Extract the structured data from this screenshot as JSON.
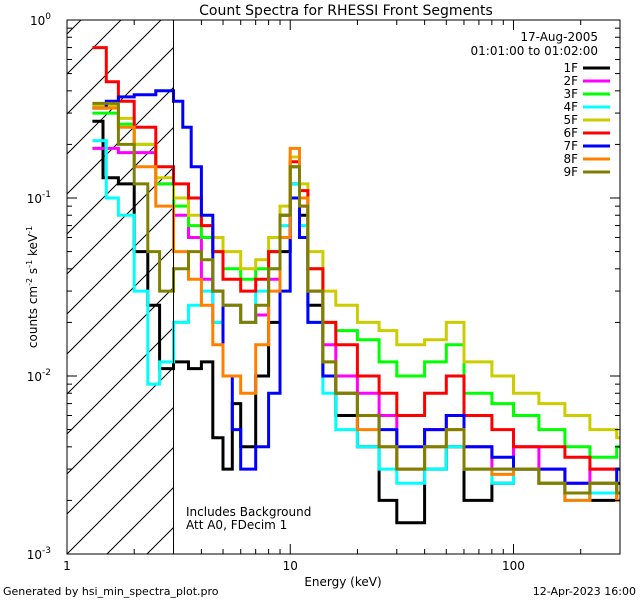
{
  "chart_data": {
    "type": "line",
    "title": "Count Spectra for RHESSI Front Segments",
    "xlabel": "Energy (keV)",
    "ylabel": "counts cm^-2 s^-1 keV^-1",
    "ylabel_parts": {
      "a": "counts cm",
      "b": "-2",
      "c": " s",
      "d": "-1",
      "e": " keV",
      "f": "-1"
    },
    "xscale": "log",
    "yscale": "log",
    "xlim": [
      1,
      300
    ],
    "ylim": [
      0.001,
      1
    ],
    "x_ticks": [
      {
        "value": 1,
        "label": "1"
      },
      {
        "value": 10,
        "label": "10"
      },
      {
        "value": 100,
        "label": "100"
      }
    ],
    "y_ticks": [
      {
        "exp": 0,
        "label_base": "10",
        "label_exp": "0"
      },
      {
        "exp": -1,
        "label_base": "10",
        "label_exp": "-1"
      },
      {
        "exp": -2,
        "label_base": "10",
        "label_exp": "-2"
      },
      {
        "exp": -3,
        "label_base": "10",
        "label_exp": "-3"
      }
    ],
    "date": "17-Aug-2005",
    "time_range": "01:01:00 to 01:02:00",
    "hatched_region_xmax": 3,
    "annotation_lines": [
      "Includes Background",
      "Att A0, FDecim 1"
    ],
    "legend_position": "top-right",
    "series": [
      {
        "name": "1F",
        "color": "#000000",
        "points": [
          [
            1.3,
            0.27
          ],
          [
            1.45,
            0.13
          ],
          [
            1.7,
            0.12
          ],
          [
            2.0,
            0.05
          ],
          [
            2.3,
            0.025
          ],
          [
            2.6,
            0.011
          ],
          [
            3.0,
            0.012
          ],
          [
            3.5,
            0.011
          ],
          [
            4.0,
            0.012
          ],
          [
            4.5,
            0.0045
          ],
          [
            5.0,
            0.003
          ],
          [
            5.5,
            0.007
          ],
          [
            6,
            0.004
          ],
          [
            7,
            0.01
          ],
          [
            8,
            0.02
          ],
          [
            9,
            0.05
          ],
          [
            10,
            0.12
          ],
          [
            11,
            0.08
          ],
          [
            12,
            0.025
          ],
          [
            14,
            0.01
          ],
          [
            16,
            0.006
          ],
          [
            20,
            0.004
          ],
          [
            25,
            0.002
          ],
          [
            30,
            0.0015
          ],
          [
            40,
            0.003
          ],
          [
            50,
            0.004
          ],
          [
            60,
            0.002
          ],
          [
            80,
            0.0025
          ],
          [
            100,
            0.003
          ],
          [
            130,
            0.0025
          ],
          [
            170,
            0.0022
          ],
          [
            220,
            0.002
          ],
          [
            290,
            0.0025
          ]
        ]
      },
      {
        "name": "2F",
        "color": "#ff00ff",
        "points": [
          [
            1.3,
            0.19
          ],
          [
            1.7,
            0.18
          ],
          [
            2.0,
            0.18
          ],
          [
            2.5,
            0.12
          ],
          [
            3.0,
            0.08
          ],
          [
            3.5,
            0.06
          ],
          [
            4.0,
            0.035
          ],
          [
            4.5,
            0.02
          ],
          [
            5.0,
            0.025
          ],
          [
            6,
            0.02
          ],
          [
            7,
            0.022
          ],
          [
            8,
            0.035
          ],
          [
            9,
            0.06
          ],
          [
            10,
            0.15
          ],
          [
            11,
            0.09
          ],
          [
            12,
            0.03
          ],
          [
            14,
            0.015
          ],
          [
            16,
            0.01
          ],
          [
            20,
            0.008
          ],
          [
            25,
            0.006
          ],
          [
            30,
            0.003
          ],
          [
            40,
            0.005
          ],
          [
            50,
            0.006
          ],
          [
            60,
            0.004
          ],
          [
            80,
            0.003
          ],
          [
            100,
            0.004
          ],
          [
            130,
            0.003
          ],
          [
            170,
            0.0025
          ],
          [
            220,
            0.003
          ],
          [
            290,
            0.003
          ]
        ]
      },
      {
        "name": "3F",
        "color": "#00ff00",
        "points": [
          [
            1.3,
            0.3
          ],
          [
            1.7,
            0.26
          ],
          [
            2.0,
            0.2
          ],
          [
            2.5,
            0.12
          ],
          [
            3.0,
            0.09
          ],
          [
            3.5,
            0.07
          ],
          [
            4.0,
            0.06
          ],
          [
            4.5,
            0.05
          ],
          [
            5.0,
            0.04
          ],
          [
            6,
            0.035
          ],
          [
            7,
            0.04
          ],
          [
            8,
            0.05
          ],
          [
            9,
            0.08
          ],
          [
            10,
            0.15
          ],
          [
            11,
            0.1
          ],
          [
            12,
            0.04
          ],
          [
            14,
            0.02
          ],
          [
            16,
            0.018
          ],
          [
            20,
            0.016
          ],
          [
            25,
            0.012
          ],
          [
            30,
            0.01
          ],
          [
            40,
            0.012
          ],
          [
            50,
            0.015
          ],
          [
            60,
            0.008
          ],
          [
            80,
            0.007
          ],
          [
            100,
            0.006
          ],
          [
            130,
            0.005
          ],
          [
            170,
            0.004
          ],
          [
            220,
            0.0035
          ],
          [
            290,
            0.004
          ]
        ]
      },
      {
        "name": "4F",
        "color": "#00ffff",
        "points": [
          [
            1.3,
            0.21
          ],
          [
            1.5,
            0.1
          ],
          [
            1.7,
            0.08
          ],
          [
            2.0,
            0.03
          ],
          [
            2.3,
            0.009
          ],
          [
            2.6,
            0.012
          ],
          [
            3.0,
            0.02
          ],
          [
            3.5,
            0.025
          ],
          [
            4.0,
            0.03
          ],
          [
            4.5,
            0.02
          ],
          [
            5.0,
            0.025
          ],
          [
            6,
            0.02
          ],
          [
            7,
            0.03
          ],
          [
            8,
            0.04
          ],
          [
            9,
            0.07
          ],
          [
            10,
            0.12
          ],
          [
            11,
            0.07
          ],
          [
            12,
            0.02
          ],
          [
            14,
            0.008
          ],
          [
            16,
            0.005
          ],
          [
            20,
            0.004
          ],
          [
            25,
            0.003
          ],
          [
            30,
            0.0025
          ],
          [
            40,
            0.003
          ],
          [
            50,
            0.004
          ],
          [
            60,
            0.003
          ],
          [
            80,
            0.0025
          ],
          [
            100,
            0.003
          ],
          [
            130,
            0.0025
          ],
          [
            170,
            0.002
          ],
          [
            220,
            0.0022
          ],
          [
            290,
            0.002
          ]
        ]
      },
      {
        "name": "5F",
        "color": "#cccc00",
        "points": [
          [
            1.3,
            0.33
          ],
          [
            1.7,
            0.28
          ],
          [
            2.0,
            0.2
          ],
          [
            2.5,
            0.13
          ],
          [
            3.0,
            0.1
          ],
          [
            3.5,
            0.08
          ],
          [
            4.0,
            0.07
          ],
          [
            4.5,
            0.06
          ],
          [
            5.0,
            0.05
          ],
          [
            6,
            0.04
          ],
          [
            7,
            0.045
          ],
          [
            8,
            0.06
          ],
          [
            9,
            0.09
          ],
          [
            10,
            0.17
          ],
          [
            11,
            0.12
          ],
          [
            12,
            0.05
          ],
          [
            14,
            0.03
          ],
          [
            16,
            0.025
          ],
          [
            20,
            0.02
          ],
          [
            25,
            0.018
          ],
          [
            30,
            0.015
          ],
          [
            40,
            0.016
          ],
          [
            50,
            0.02
          ],
          [
            60,
            0.012
          ],
          [
            80,
            0.01
          ],
          [
            100,
            0.008
          ],
          [
            130,
            0.007
          ],
          [
            170,
            0.006
          ],
          [
            220,
            0.005
          ],
          [
            290,
            0.0045
          ]
        ]
      },
      {
        "name": "6F",
        "color": "#ff0000",
        "points": [
          [
            1.3,
            0.7
          ],
          [
            1.5,
            0.45
          ],
          [
            1.7,
            0.35
          ],
          [
            2.0,
            0.25
          ],
          [
            2.5,
            0.15
          ],
          [
            3.0,
            0.12
          ],
          [
            3.5,
            0.1
          ],
          [
            4.0,
            0.07
          ],
          [
            4.5,
            0.05
          ],
          [
            5.0,
            0.035
          ],
          [
            6,
            0.03
          ],
          [
            7,
            0.035
          ],
          [
            8,
            0.05
          ],
          [
            9,
            0.08
          ],
          [
            10,
            0.16
          ],
          [
            11,
            0.11
          ],
          [
            12,
            0.04
          ],
          [
            14,
            0.02
          ],
          [
            16,
            0.015
          ],
          [
            20,
            0.01
          ],
          [
            25,
            0.008
          ],
          [
            30,
            0.006
          ],
          [
            40,
            0.008
          ],
          [
            50,
            0.01
          ],
          [
            60,
            0.006
          ],
          [
            80,
            0.005
          ],
          [
            100,
            0.004
          ],
          [
            130,
            0.004
          ],
          [
            170,
            0.0035
          ],
          [
            220,
            0.003
          ],
          [
            290,
            0.003
          ]
        ]
      },
      {
        "name": "7F",
        "color": "#0000ff",
        "points": [
          [
            1.3,
            0.32
          ],
          [
            1.5,
            0.35
          ],
          [
            1.7,
            0.37
          ],
          [
            2.0,
            0.38
          ],
          [
            2.5,
            0.4
          ],
          [
            3.0,
            0.35
          ],
          [
            3.3,
            0.25
          ],
          [
            3.6,
            0.15
          ],
          [
            4.0,
            0.08
          ],
          [
            4.5,
            0.03
          ],
          [
            5.0,
            0.01
          ],
          [
            5.5,
            0.005
          ],
          [
            6,
            0.003
          ],
          [
            7,
            0.004
          ],
          [
            8,
            0.008
          ],
          [
            9,
            0.03
          ],
          [
            10,
            0.1
          ],
          [
            11,
            0.06
          ],
          [
            12,
            0.02
          ],
          [
            14,
            0.01
          ],
          [
            16,
            0.008
          ],
          [
            20,
            0.006
          ],
          [
            25,
            0.005
          ],
          [
            30,
            0.004
          ],
          [
            40,
            0.005
          ],
          [
            50,
            0.006
          ],
          [
            60,
            0.004
          ],
          [
            80,
            0.0035
          ],
          [
            100,
            0.003
          ],
          [
            130,
            0.003
          ],
          [
            170,
            0.0025
          ],
          [
            220,
            0.0025
          ],
          [
            290,
            0.003
          ]
        ]
      },
      {
        "name": "8F",
        "color": "#ff8000",
        "points": [
          [
            1.3,
            0.32
          ],
          [
            1.7,
            0.25
          ],
          [
            2.0,
            0.15
          ],
          [
            2.5,
            0.09
          ],
          [
            3.0,
            0.05
          ],
          [
            3.5,
            0.035
          ],
          [
            4.0,
            0.025
          ],
          [
            4.5,
            0.015
          ],
          [
            5.0,
            0.01
          ],
          [
            6,
            0.008
          ],
          [
            7,
            0.015
          ],
          [
            8,
            0.03
          ],
          [
            9,
            0.06
          ],
          [
            10,
            0.19
          ],
          [
            11,
            0.1
          ],
          [
            12,
            0.03
          ],
          [
            14,
            0.012
          ],
          [
            16,
            0.008
          ],
          [
            20,
            0.005
          ],
          [
            25,
            0.004
          ],
          [
            30,
            0.003
          ],
          [
            40,
            0.004
          ],
          [
            50,
            0.005
          ],
          [
            60,
            0.003
          ],
          [
            80,
            0.0028
          ],
          [
            100,
            0.003
          ],
          [
            130,
            0.0025
          ],
          [
            170,
            0.002
          ],
          [
            220,
            0.0025
          ],
          [
            290,
            0.002
          ]
        ]
      },
      {
        "name": "9F",
        "color": "#808000",
        "points": [
          [
            1.3,
            0.34
          ],
          [
            1.7,
            0.2
          ],
          [
            2.0,
            0.12
          ],
          [
            2.3,
            0.05
          ],
          [
            2.6,
            0.03
          ],
          [
            3.0,
            0.04
          ],
          [
            3.5,
            0.05
          ],
          [
            4.0,
            0.045
          ],
          [
            4.5,
            0.03
          ],
          [
            5.0,
            0.025
          ],
          [
            6,
            0.02
          ],
          [
            7,
            0.025
          ],
          [
            8,
            0.04
          ],
          [
            9,
            0.08
          ],
          [
            10,
            0.15
          ],
          [
            11,
            0.09
          ],
          [
            12,
            0.03
          ],
          [
            14,
            0.012
          ],
          [
            16,
            0.008
          ],
          [
            20,
            0.006
          ],
          [
            25,
            0.004
          ],
          [
            30,
            0.003
          ],
          [
            40,
            0.004
          ],
          [
            50,
            0.005
          ],
          [
            60,
            0.003
          ],
          [
            80,
            0.003
          ],
          [
            100,
            0.003
          ],
          [
            130,
            0.0025
          ],
          [
            170,
            0.0022
          ],
          [
            220,
            0.0025
          ],
          [
            290,
            0.0022
          ]
        ]
      }
    ]
  },
  "footer": {
    "left": "Generated by hsi_min_spectra_plot.pro",
    "right": "12-Apr-2023 16:00"
  }
}
